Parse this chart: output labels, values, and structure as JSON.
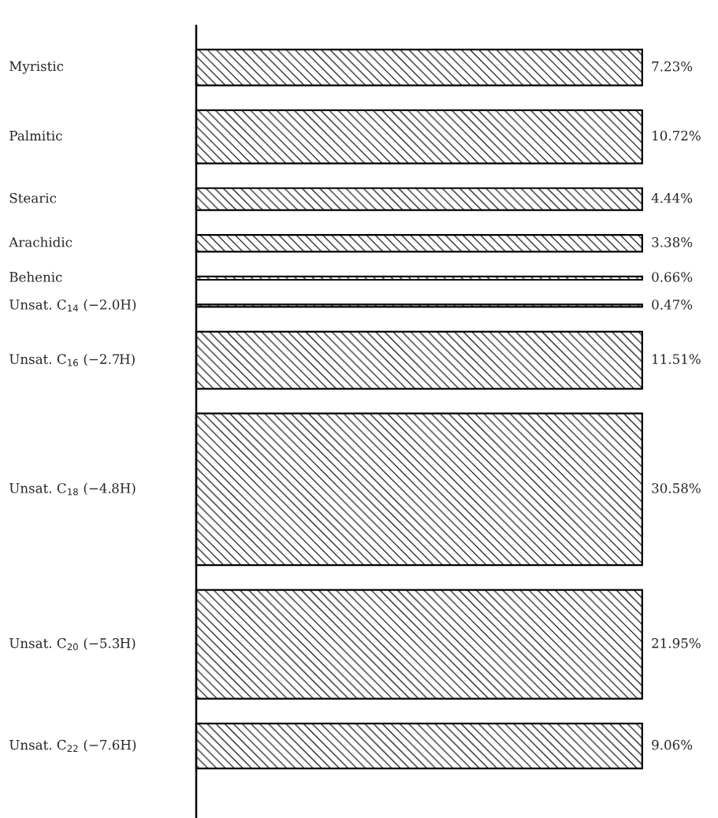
{
  "chart_data": {
    "type": "other",
    "categories": [
      "Myristic",
      "Palmitic",
      "Stearic",
      "Arachidic",
      "Behenic",
      "Unsat. C$_{14}$ (−2.0H)",
      "Unsat. C$_{16}$ (−2.7H)",
      "Unsat. C$_{18}$ (−4.8H)",
      "Unsat. C$_{20}$ (−5.3H)",
      "Unsat. C$_{22}$ (−7.6H)"
    ],
    "values": [
      7.23,
      10.72,
      4.44,
      3.38,
      0.66,
      0.47,
      11.51,
      30.58,
      21.95,
      9.06
    ],
    "value_labels": [
      "7.23%",
      "10.72%",
      "4.44%",
      "3.38%",
      "0.66%",
      "0.47%",
      "11.51%",
      "30.58%",
      "21.95%",
      "9.06%"
    ]
  }
}
